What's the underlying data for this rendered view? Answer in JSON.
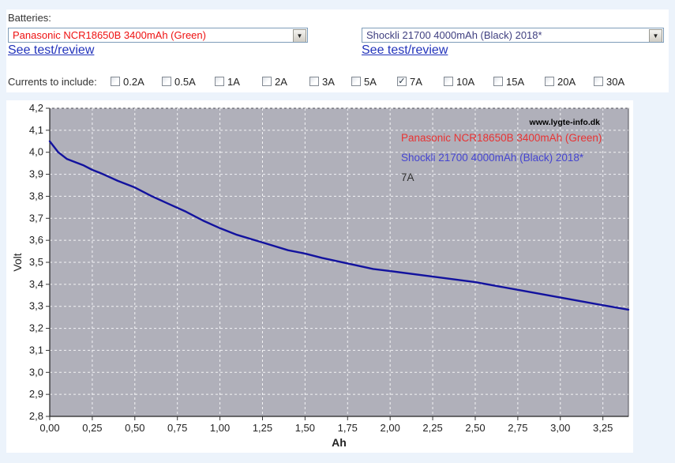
{
  "batteries_label": "Batteries:",
  "selectors": [
    {
      "value": "Panasonic NCR18650B 3400mAh (Green)",
      "color": "#ee1111",
      "link": "See test/review"
    },
    {
      "value": "Shockli 21700 4000mAh (Black) 2018*",
      "color": "#3f3f80",
      "link": "See test/review"
    }
  ],
  "currents": {
    "label": "Currents to include:",
    "options": [
      {
        "label": "0.2A",
        "checked": false
      },
      {
        "label": "0.5A",
        "checked": false
      },
      {
        "label": "1A",
        "checked": false
      },
      {
        "label": "2A",
        "checked": false
      },
      {
        "label": "3A",
        "checked": false
      },
      {
        "label": "5A",
        "checked": false
      },
      {
        "label": "7A",
        "checked": true
      },
      {
        "label": "10A",
        "checked": false
      },
      {
        "label": "15A",
        "checked": false
      },
      {
        "label": "20A",
        "checked": false
      },
      {
        "label": "30A",
        "checked": false
      }
    ]
  },
  "chart_data": {
    "type": "line",
    "watermark": "www.lygte-info.dk",
    "xlabel": "Ah",
    "ylabel": "Volt",
    "xlim": [
      0,
      3.4
    ],
    "ylim": [
      2.8,
      4.2
    ],
    "grid": true,
    "plot_bg": "#b0b0ba",
    "grid_color": "rgba(255,255,255,0.85)",
    "x_ticks": [
      0,
      0.25,
      0.5,
      0.75,
      1.0,
      1.25,
      1.5,
      1.75,
      2.0,
      2.25,
      2.5,
      2.75,
      3.0,
      3.25
    ],
    "x_tick_labels": [
      "0,00",
      "0,25",
      "0,50",
      "0,75",
      "1,00",
      "1,25",
      "1,50",
      "1,75",
      "2,00",
      "2,25",
      "2,50",
      "2,75",
      "3,00",
      "3,25"
    ],
    "y_ticks": [
      2.8,
      2.9,
      3.0,
      3.1,
      3.2,
      3.3,
      3.4,
      3.5,
      3.6,
      3.7,
      3.8,
      3.9,
      4.0,
      4.1,
      4.2
    ],
    "y_tick_labels": [
      "2,8",
      "2,9",
      "3,0",
      "3,1",
      "3,2",
      "3,3",
      "3,4",
      "3,5",
      "3,6",
      "3,7",
      "3,8",
      "3,9",
      "4,0",
      "4,1",
      "4,2"
    ],
    "legend": [
      {
        "label": "Panasonic NCR18650B 3400mAh (Green)",
        "color": "#e83333"
      },
      {
        "label": "Shockli 21700 4000mAh (Black) 2018*",
        "color": "#4545d0"
      },
      {
        "label": "7A",
        "color": "#2e2e2e"
      }
    ],
    "series": [
      {
        "name": "Shockli 21700 4000mAh (Black) 2018* @ 7A",
        "color": "#12129e",
        "points": [
          [
            0.0,
            4.05
          ],
          [
            0.02,
            4.03
          ],
          [
            0.05,
            4.0
          ],
          [
            0.1,
            3.97
          ],
          [
            0.15,
            3.955
          ],
          [
            0.2,
            3.94
          ],
          [
            0.25,
            3.92
          ],
          [
            0.3,
            3.905
          ],
          [
            0.4,
            3.87
          ],
          [
            0.5,
            3.84
          ],
          [
            0.6,
            3.8
          ],
          [
            0.7,
            3.765
          ],
          [
            0.8,
            3.73
          ],
          [
            0.9,
            3.69
          ],
          [
            1.0,
            3.655
          ],
          [
            1.1,
            3.625
          ],
          [
            1.25,
            3.59
          ],
          [
            1.4,
            3.555
          ],
          [
            1.5,
            3.54
          ],
          [
            1.6,
            3.52
          ],
          [
            1.75,
            3.495
          ],
          [
            1.9,
            3.47
          ],
          [
            2.0,
            3.46
          ],
          [
            2.25,
            3.435
          ],
          [
            2.5,
            3.41
          ],
          [
            2.75,
            3.375
          ],
          [
            3.0,
            3.34
          ],
          [
            3.25,
            3.305
          ],
          [
            3.4,
            3.285
          ]
        ]
      }
    ]
  }
}
